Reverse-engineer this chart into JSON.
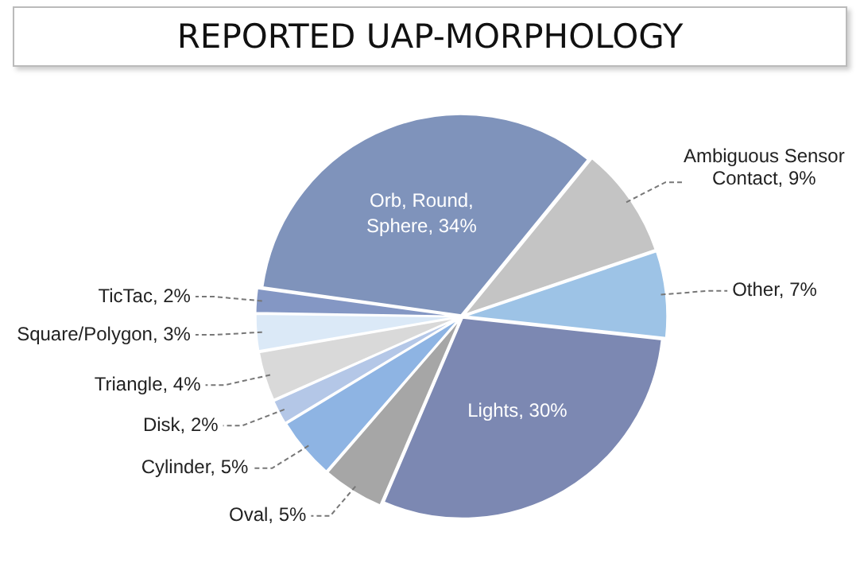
{
  "chart_data": {
    "type": "pie",
    "title": "REPORTED UAP-MORPHOLOGY",
    "categories": [
      "Orb, Round, Sphere",
      "Ambiguous Sensor Contact",
      "Other",
      "Lights",
      "Oval",
      "Cylinder",
      "Disk",
      "Triangle",
      "Square/Polygon",
      "TicTac"
    ],
    "values": [
      34,
      9,
      7,
      30,
      5,
      5,
      2,
      4,
      3,
      2
    ],
    "value_labels": [
      "34%",
      "9%",
      "7%",
      "30%",
      "5%",
      "5%",
      "2%",
      "4%",
      "3%",
      "2%"
    ],
    "colors": [
      "#7f93bb",
      "#c4c4c4",
      "#9dc3e6",
      "#7c88b2",
      "#a6a6a6",
      "#8eb4e3",
      "#b4c7e7",
      "#d9d9d9",
      "#dbe9f7",
      "#8497c4"
    ],
    "legend": false
  }
}
